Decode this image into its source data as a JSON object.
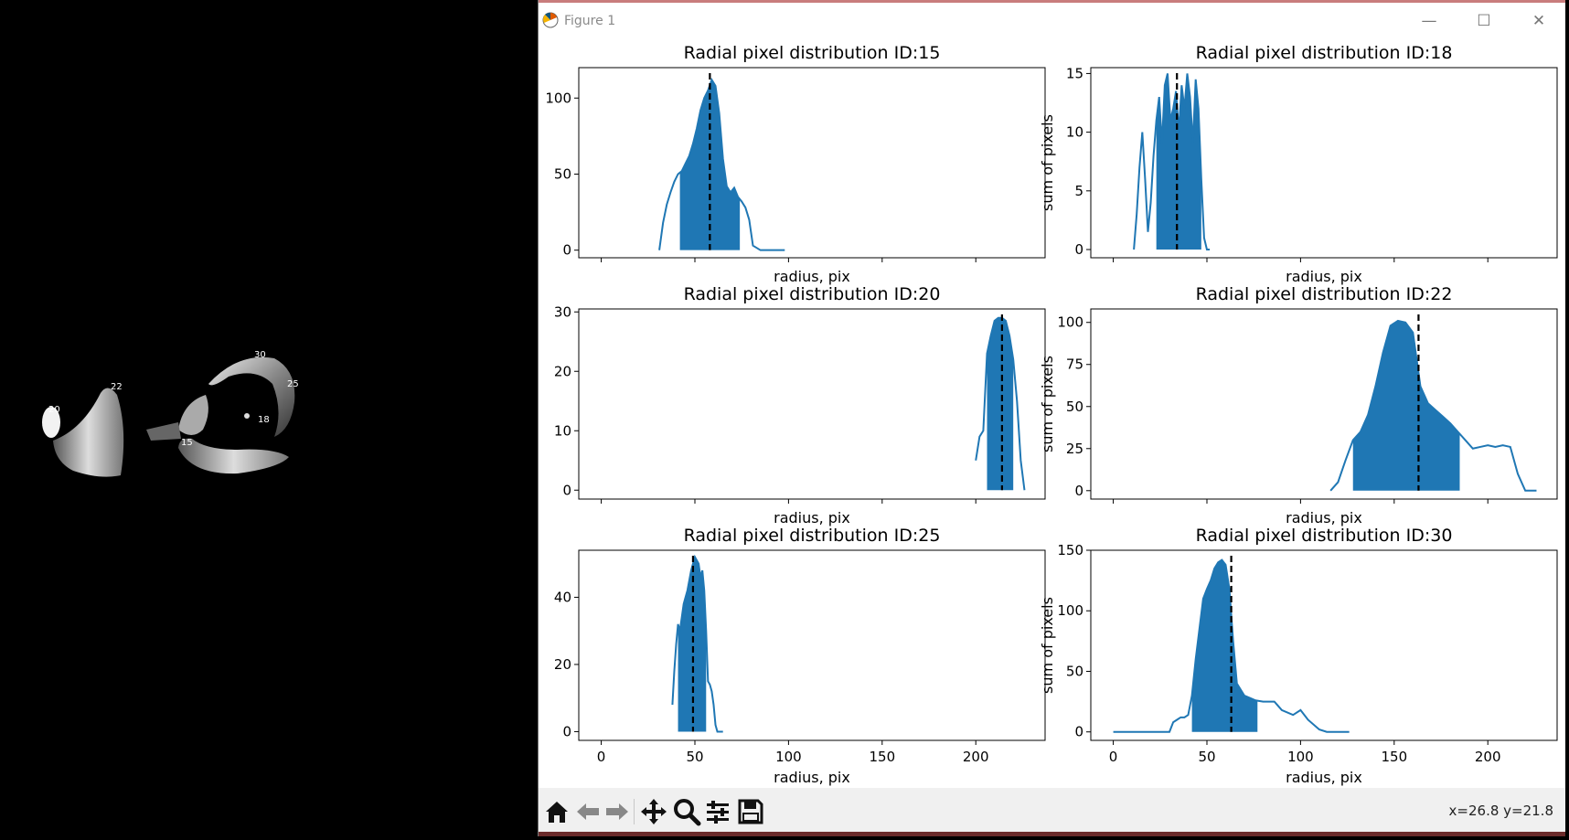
{
  "window": {
    "title": "Figure 1"
  },
  "toolbar": {
    "buttons": [
      "home-icon",
      "back-icon",
      "forward-icon",
      "pan-icon",
      "zoom-icon",
      "configure-icon",
      "save-icon"
    ],
    "coord_readout": "x=26.8 y=21.8"
  },
  "colors": {
    "series": "#1f77b4",
    "marker": "#000000",
    "axes": "#000000"
  },
  "left_image": {
    "labels": [
      "20",
      "22",
      "30",
      "25",
      "18",
      "15"
    ]
  },
  "chart_data": [
    {
      "type": "line",
      "title": "Radial pixel distribution ID:15",
      "xlabel": "radius, pix",
      "ylabel": "",
      "xlim": [
        -12,
        237
      ],
      "ylim": [
        -5,
        120
      ],
      "yticks": [
        0,
        50,
        100
      ],
      "show_xticklabels": false,
      "x": [
        31,
        33,
        35,
        37,
        39,
        41,
        43,
        45,
        47,
        49,
        51,
        53,
        55,
        57,
        59,
        61,
        63,
        65,
        67,
        69,
        71,
        73,
        75,
        77,
        79,
        81,
        85,
        90,
        98
      ],
      "y": [
        0,
        18,
        30,
        38,
        45,
        50,
        52,
        57,
        62,
        70,
        80,
        92,
        100,
        105,
        112,
        108,
        90,
        60,
        42,
        38,
        41,
        35,
        32,
        28,
        20,
        3,
        0,
        0,
        0
      ],
      "fill_range": [
        42,
        74
      ],
      "marker_x": 58
    },
    {
      "type": "line",
      "title": "Radial pixel distribution ID:18",
      "xlabel": "radius, pix",
      "ylabel": "sum of pixels",
      "xlim": [
        -12,
        237
      ],
      "ylim": [
        -0.7,
        15.5
      ],
      "yticks": [
        0,
        5,
        10,
        15
      ],
      "show_xticklabels": false,
      "x": [
        11,
        12.5,
        14,
        15.5,
        17,
        18.5,
        20,
        21.5,
        23,
        24.5,
        26,
        27.5,
        29,
        30.5,
        32,
        33.5,
        35,
        36.5,
        38,
        39.5,
        41,
        42.5,
        44,
        45.5,
        47,
        48.5,
        50,
        51.5
      ],
      "y": [
        0,
        3,
        7,
        10,
        6,
        1.5,
        4,
        8,
        11,
        13,
        9,
        14,
        15,
        11,
        12,
        13.5,
        10,
        14,
        12,
        15,
        13,
        9,
        14.5,
        12,
        6,
        1,
        0,
        0
      ],
      "fill_range": [
        23,
        47
      ],
      "marker_x": 34
    },
    {
      "type": "line",
      "title": "Radial pixel distribution ID:20",
      "xlabel": "radius, pix",
      "ylabel": "",
      "xlim": [
        -12,
        237
      ],
      "ylim": [
        -1.5,
        30.5
      ],
      "yticks": [
        0,
        10,
        20,
        30
      ],
      "show_xticklabels": false,
      "x": [
        200,
        202,
        204,
        206,
        208,
        210,
        212,
        214,
        216,
        218,
        220,
        222,
        224,
        226
      ],
      "y": [
        5,
        9,
        10,
        23,
        26,
        28.5,
        29,
        29,
        28.5,
        26,
        22,
        15,
        5,
        0
      ],
      "fill_range": [
        206,
        220
      ],
      "marker_x": 214
    },
    {
      "type": "line",
      "title": "Radial pixel distribution ID:22",
      "xlabel": "radius, pix",
      "ylabel": "sum of pixels",
      "xlim": [
        -12,
        237
      ],
      "ylim": [
        -5,
        108
      ],
      "yticks": [
        0,
        25,
        50,
        75,
        100
      ],
      "show_xticklabels": false,
      "x": [
        116,
        120,
        124,
        128,
        132,
        136,
        140,
        144,
        148,
        152,
        156,
        160,
        164,
        168,
        172,
        176,
        180,
        184,
        188,
        192,
        196,
        200,
        204,
        208,
        212,
        216,
        220,
        226
      ],
      "y": [
        0,
        5,
        18,
        30,
        35,
        45,
        62,
        82,
        98,
        101,
        100,
        94,
        62,
        52,
        48,
        44,
        40,
        35,
        30,
        25,
        26,
        27,
        26,
        27,
        26,
        10,
        0,
        0
      ],
      "fill_range": [
        128,
        185
      ],
      "marker_x": 163
    },
    {
      "type": "line",
      "title": "Radial pixel distribution ID:25",
      "xlabel": "radius, pix",
      "ylabel": "",
      "xlim": [
        -12,
        237
      ],
      "ylim": [
        -2.6,
        54
      ],
      "yticks": [
        0,
        20,
        40
      ],
      "xticks": [
        0,
        50,
        100,
        150,
        200
      ],
      "show_xticklabels": true,
      "x": [
        38,
        39,
        40,
        41,
        42,
        43,
        44,
        45,
        46,
        47,
        48,
        49,
        50,
        51,
        52,
        53,
        54,
        55,
        56,
        57,
        58,
        59,
        60,
        61,
        62,
        63,
        64,
        65
      ],
      "y": [
        8,
        18,
        26,
        32,
        30,
        34,
        38,
        40,
        42,
        45,
        48,
        50,
        52,
        51,
        50,
        46,
        48,
        42,
        30,
        15,
        14,
        12,
        8,
        2,
        0,
        0,
        0,
        0
      ],
      "fill_range": [
        41,
        56
      ],
      "marker_x": 49
    },
    {
      "type": "line",
      "title": "Radial pixel distribution ID:30",
      "xlabel": "radius, pix",
      "ylabel": "sum of pixels",
      "xlim": [
        -12,
        237
      ],
      "ylim": [
        -7,
        150
      ],
      "yticks": [
        0,
        50,
        100,
        150
      ],
      "xticks": [
        0,
        50,
        100,
        150,
        200
      ],
      "show_xticklabels": true,
      "x": [
        0,
        10,
        20,
        30,
        32,
        34,
        36,
        38,
        40,
        42,
        44,
        46,
        48,
        50,
        52,
        54,
        56,
        58,
        60,
        62,
        64,
        66,
        70,
        76,
        80,
        86,
        90,
        96,
        100,
        104,
        110,
        114,
        120,
        126
      ],
      "y": [
        0,
        0,
        0,
        0,
        8,
        10,
        12,
        12,
        14,
        30,
        60,
        85,
        110,
        118,
        125,
        135,
        140,
        142,
        138,
        118,
        75,
        40,
        30,
        26,
        25,
        25,
        18,
        14,
        18,
        10,
        2,
        0,
        0,
        0
      ],
      "fill_range": [
        42,
        77
      ],
      "marker_x": 63
    }
  ]
}
